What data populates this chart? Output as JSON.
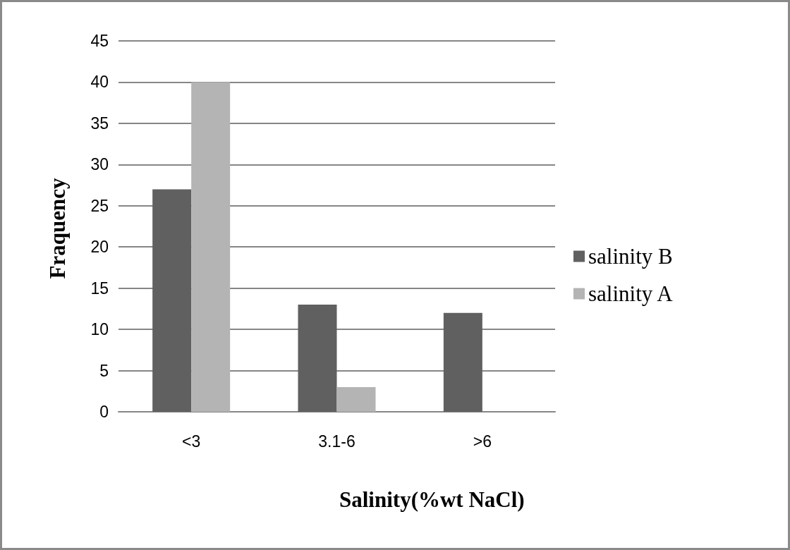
{
  "chart_data": {
    "type": "bar",
    "xlabel": "Salinity(%wt NaCl)",
    "ylabel": "Fraquency",
    "categories": [
      "<3",
      "3.1-6",
      ">6"
    ],
    "series": [
      {
        "name": "salinity B",
        "color": "#606060",
        "values": [
          27,
          13,
          12
        ]
      },
      {
        "name": "salinity A",
        "color": "#b4b4b4",
        "values": [
          40,
          3,
          0
        ]
      }
    ],
    "ylim": [
      0,
      45
    ],
    "yticks": [
      0,
      5,
      10,
      15,
      20,
      25,
      30,
      35,
      40,
      45
    ],
    "grid": "y",
    "legend": "right"
  }
}
